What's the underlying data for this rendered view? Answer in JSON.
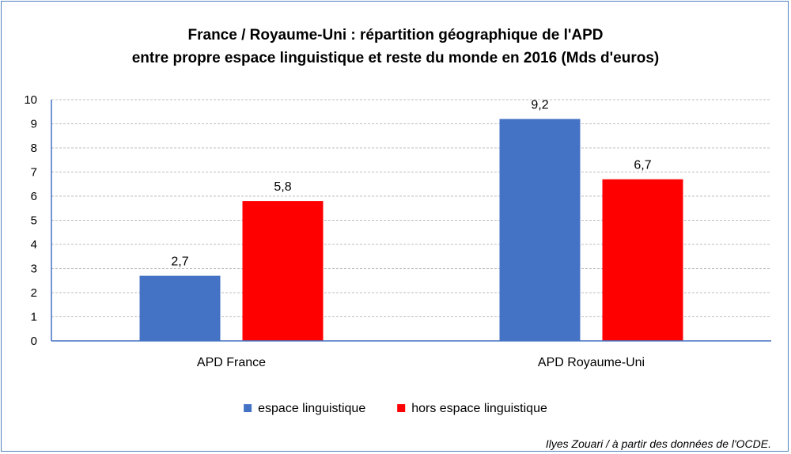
{
  "chart_data": {
    "type": "bar",
    "title": "France / Royaume-Uni : répartition géographique de l'APD",
    "subtitle": "entre propre espace linguistique et reste du monde en 2016 (Mds d'euros)",
    "xlabel": "",
    "ylabel": "",
    "categories": [
      "APD France",
      "APD Royaume-Uni"
    ],
    "series": [
      {
        "name": "espace linguistique",
        "color": "#4472c4",
        "values": [
          2.7,
          9.2
        ],
        "labels": [
          "2,7",
          "9,2"
        ]
      },
      {
        "name": "hors espace linguistique",
        "color": "#ff0000",
        "values": [
          5.8,
          6.7
        ],
        "labels": [
          "5,8",
          "6,7"
        ]
      }
    ],
    "ylim": [
      0,
      10
    ],
    "yticks": [
      0,
      1,
      2,
      3,
      4,
      5,
      6,
      7,
      8,
      9,
      10
    ],
    "grid": true,
    "legend_position": "bottom"
  },
  "source": "Ilyes Zouari / à partir des données de l'OCDE.",
  "colors": {
    "border": "#4f81bd",
    "axis": "#4472c4",
    "grid": "#bfbfbf"
  }
}
